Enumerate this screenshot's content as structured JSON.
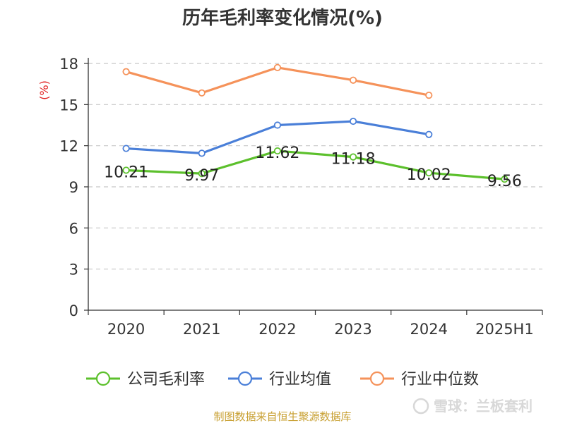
{
  "chart_data": {
    "type": "line",
    "title": "历年毛利率变化情况(%)",
    "ylabel": "(%)",
    "xlabel": "",
    "categories": [
      "2020",
      "2021",
      "2022",
      "2023",
      "2024",
      "2025H1"
    ],
    "ylim": [
      0,
      18
    ],
    "yticks": [
      0,
      3,
      6,
      9,
      12,
      15,
      18
    ],
    "grid": "horizontal-dashed",
    "legend_position": "bottom",
    "series": [
      {
        "name": "公司毛利率",
        "color": "#5cc02c",
        "values": [
          10.21,
          9.97,
          11.62,
          11.18,
          10.02,
          9.56
        ],
        "labels": [
          "10.21",
          "9.97",
          "11.62",
          "11.18",
          "10.02",
          "9.56"
        ]
      },
      {
        "name": "行业均值",
        "color": "#4a7fd8",
        "values": [
          11.8,
          11.45,
          13.5,
          13.78,
          12.82,
          null
        ],
        "labels": []
      },
      {
        "name": "行业中位数",
        "color": "#f5925a",
        "values": [
          17.4,
          15.85,
          17.7,
          16.78,
          15.68,
          null
        ],
        "labels": []
      }
    ]
  },
  "footer": {
    "source": "制图数据来自恒生聚源数据库",
    "watermark": "雪球：兰板套利"
  }
}
